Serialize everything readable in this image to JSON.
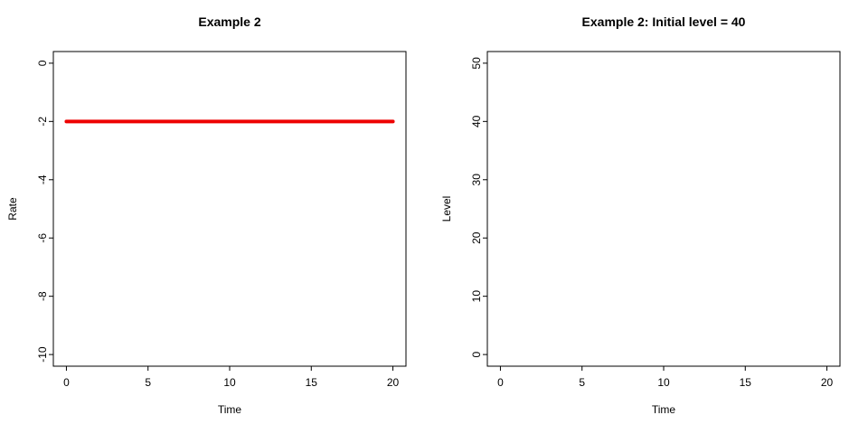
{
  "page": {
    "background": "#ffffff",
    "text_color": "#000000"
  },
  "chart_data": [
    {
      "type": "line",
      "title": "Example 2",
      "xlabel": "Time",
      "ylabel": "Rate",
      "xlim": [
        0,
        20
      ],
      "ylim": [
        -10,
        0
      ],
      "xticks": [
        0,
        5,
        10,
        15,
        20
      ],
      "yticks": [
        -10,
        -8,
        -6,
        -4,
        -2,
        0
      ],
      "grid": false,
      "legend": "none",
      "axis_color": "#000000",
      "series": [
        {
          "name": "rate",
          "color": "#EE0000",
          "line_width": 4,
          "x": [
            0,
            20
          ],
          "y": [
            -2,
            -2
          ]
        }
      ]
    },
    {
      "type": "line",
      "title": "Example 2: Initial level = 40",
      "xlabel": "Time",
      "ylabel": "Level",
      "xlim": [
        0,
        20
      ],
      "ylim": [
        0,
        50
      ],
      "xticks": [
        0,
        5,
        10,
        15,
        20
      ],
      "yticks": [
        0,
        10,
        20,
        30,
        40,
        50
      ],
      "grid": false,
      "legend": "none",
      "axis_color": "#000000",
      "series": []
    }
  ]
}
